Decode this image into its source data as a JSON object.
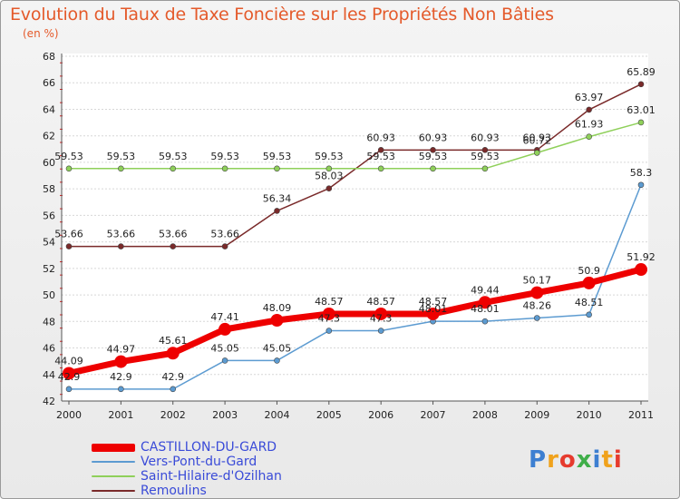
{
  "title": "Evolution du Taux de Taxe Foncière sur les Propriétés Non Bâties",
  "unit_label": "(en %)",
  "logo_text": "Proxiti",
  "colors": {
    "title": "#e45a2b",
    "legend_text": "#3a4bd8"
  },
  "chart_data": {
    "type": "line",
    "x": [
      2000,
      2001,
      2002,
      2003,
      2004,
      2005,
      2006,
      2007,
      2008,
      2009,
      2010,
      2011
    ],
    "ylim": [
      42,
      68
    ],
    "yticks": [
      42,
      44,
      46,
      48,
      50,
      52,
      54,
      56,
      58,
      60,
      62,
      64,
      66,
      68
    ],
    "grid": "horizontal",
    "legend_position": "bottom-left",
    "series": [
      {
        "name": "CASTILLON-DU-GARD",
        "color": "#ee0000",
        "labels": [
          "44.09",
          "44.97",
          "45.61",
          "47.41",
          "48.09",
          "48.57",
          "48.57",
          "48.57",
          "49.44",
          "50.17",
          "50.9",
          "51.92"
        ],
        "values": [
          44.09,
          44.97,
          45.61,
          47.41,
          48.09,
          48.57,
          48.57,
          48.57,
          49.44,
          50.17,
          50.9,
          51.92
        ]
      },
      {
        "name": "Vers-Pont-du-Gard",
        "color": "#5c9bd1",
        "labels": [
          "42.9",
          "42.9",
          "42.9",
          "45.05",
          "45.05",
          "47.3",
          "47.3",
          "48.01",
          "48.01",
          "48.26",
          "48.51",
          "58.3"
        ],
        "values": [
          42.9,
          42.9,
          42.9,
          45.05,
          45.05,
          47.3,
          47.3,
          48.01,
          48.01,
          48.26,
          48.51,
          58.3
        ]
      },
      {
        "name": "Saint-Hilaire-d'Ozilhan",
        "color": "#8fd05a",
        "labels": [
          "59.53",
          "59.53",
          "59.53",
          "59.53",
          "59.53",
          "59.53",
          "59.53",
          "59.53",
          "59.53",
          "60.72",
          "61.93",
          "63.01"
        ],
        "values": [
          59.53,
          59.53,
          59.53,
          59.53,
          59.53,
          59.53,
          59.53,
          59.53,
          59.53,
          60.72,
          61.93,
          63.01
        ]
      },
      {
        "name": "Remoulins",
        "color": "#7a2a2a",
        "labels": [
          "53.66",
          "53.66",
          "53.66",
          "53.66",
          "56.34",
          "58.03",
          "60.93",
          "60.93",
          "60.93",
          "60.93",
          "63.97",
          "65.89"
        ],
        "values": [
          53.66,
          53.66,
          53.66,
          53.66,
          56.34,
          58.03,
          60.93,
          60.93,
          60.93,
          60.93,
          63.97,
          65.89
        ]
      }
    ]
  }
}
